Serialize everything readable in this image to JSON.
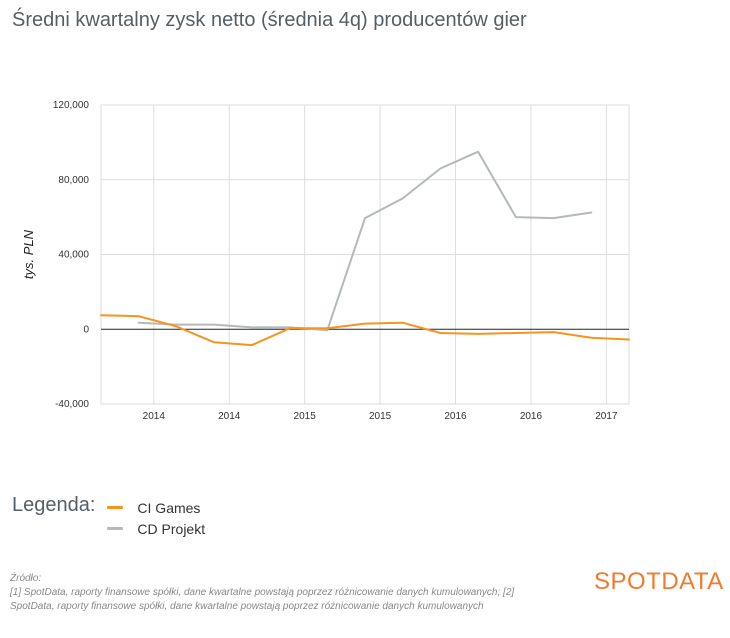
{
  "title": "Średni kwartalny zysk netto (średnia 4q) producentów gier",
  "legend": {
    "title": "Legenda:",
    "items": [
      {
        "label": "CI Games",
        "color": "#f7941d"
      },
      {
        "label": "CD Projekt",
        "color": "#b3b9bd"
      }
    ]
  },
  "footer": {
    "source_label": "Źródło:",
    "lines": [
      "[1] SpotData, raporty finansowe spółki, dane kwartalne powstają poprzez różnicowanie danych kumulowanych; [2]",
      "SpotData, raporty finansowe spółki, dane kwartalne powstają poprzez różnicowanie danych kumulowanych"
    ]
  },
  "brand": "SPOTDATA",
  "chart_data": {
    "type": "line",
    "title": "Średni kwartalny zysk netto (średnia 4q) producentów gier",
    "xlabel": "",
    "ylabel": "tys. PLN",
    "ylim": [
      -40000,
      120000
    ],
    "xlim": [
      2013.65,
      2017.15
    ],
    "yticks": [
      120000,
      80000,
      40000,
      0,
      -40000
    ],
    "ytick_labels": [
      "120,000",
      "80,000",
      "40,000",
      "0",
      "-40,000"
    ],
    "xticks": [
      2014.0,
      2014.5,
      2015.0,
      2015.5,
      2016.0,
      2016.5,
      2017.0
    ],
    "xtick_labels": [
      "2014",
      "2014",
      "2015",
      "2015",
      "2016",
      "2016",
      "2017"
    ],
    "grid": true,
    "legend_position": "bottom-left",
    "series": [
      {
        "name": "CI Games",
        "color": "#f7941d",
        "x": [
          2013.65,
          2013.9,
          2014.15,
          2014.4,
          2014.65,
          2014.9,
          2015.15,
          2015.4,
          2015.65,
          2015.9,
          2016.15,
          2016.4,
          2016.65,
          2016.9,
          2017.15
        ],
        "y": [
          7500,
          7000,
          1500,
          -7000,
          -8500,
          500,
          500,
          3000,
          3500,
          -2000,
          -2500,
          -2000,
          -1500,
          -4500,
          -5500
        ]
      },
      {
        "name": "CD Projekt",
        "color": "#b3b9bd",
        "x": [
          2013.9,
          2014.15,
          2014.4,
          2014.65,
          2014.9,
          2015.15,
          2015.4,
          2015.65,
          2015.9,
          2016.15,
          2016.4,
          2016.65,
          2016.9
        ],
        "y": [
          3500,
          2500,
          2500,
          1000,
          1000,
          -500,
          59500,
          70000,
          86000,
          95000,
          60000,
          59500,
          62500
        ]
      }
    ]
  }
}
